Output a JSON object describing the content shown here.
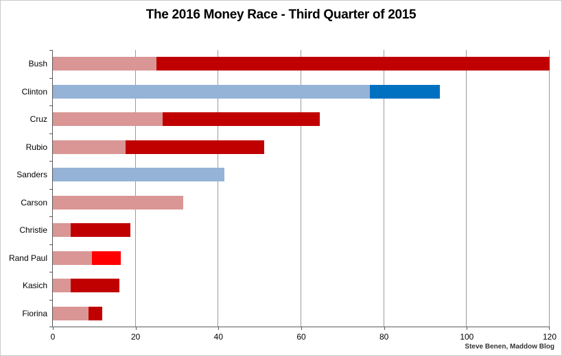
{
  "title": "The 2016 Money Race - Third Quarter of 2015",
  "attribution": "Steve Benen, Maddow Blog",
  "colors": {
    "republican_light": "#D99694",
    "republican_dark": "#C00000",
    "republican_bright": "#FF0000",
    "democrat_light": "#95B3D7",
    "democrat_dark": "#0070C0",
    "gridline": "#9A9A9A",
    "axis": "#595959",
    "background": "#FFFFFF"
  },
  "chart_data": {
    "type": "bar",
    "orientation": "horizontal",
    "stacked": true,
    "grid": true,
    "legend": "none",
    "title": "The 2016 Money Race - Third Quarter of 2015",
    "xlabel": "",
    "ylabel": "",
    "xlim": [
      0,
      120
    ],
    "x_ticks": [
      0,
      20,
      40,
      60,
      80,
      100,
      120
    ],
    "categories": [
      "Bush",
      "Clinton",
      "Cruz",
      "Rubio",
      "Sanders",
      "Carson",
      "Christie",
      "Rand Paul",
      "Kasich",
      "Fiorina"
    ],
    "rows": [
      {
        "label": "Bush",
        "segments": [
          {
            "value": 25.0,
            "color": "#D99694"
          },
          {
            "value": 95.0,
            "color": "#C00000"
          }
        ],
        "total": 120.0
      },
      {
        "label": "Clinton",
        "segments": [
          {
            "value": 76.5,
            "color": "#95B3D7"
          },
          {
            "value": 17.0,
            "color": "#0070C0"
          }
        ],
        "total": 93.5
      },
      {
        "label": "Cruz",
        "segments": [
          {
            "value": 26.5,
            "color": "#D99694"
          },
          {
            "value": 38.0,
            "color": "#C00000"
          }
        ],
        "total": 64.5
      },
      {
        "label": "Rubio",
        "segments": [
          {
            "value": 17.5,
            "color": "#D99694"
          },
          {
            "value": 33.5,
            "color": "#C00000"
          }
        ],
        "total": 51.0
      },
      {
        "label": "Sanders",
        "segments": [
          {
            "value": 41.5,
            "color": "#95B3D7"
          }
        ],
        "total": 41.5
      },
      {
        "label": "Carson",
        "segments": [
          {
            "value": 31.5,
            "color": "#D99694"
          }
        ],
        "total": 31.5
      },
      {
        "label": "Christie",
        "segments": [
          {
            "value": 4.3,
            "color": "#D99694"
          },
          {
            "value": 14.4,
            "color": "#C00000"
          }
        ],
        "total": 18.7
      },
      {
        "label": "Rand Paul",
        "segments": [
          {
            "value": 9.4,
            "color": "#D99694"
          },
          {
            "value": 7.0,
            "color": "#FF0000"
          }
        ],
        "total": 16.4
      },
      {
        "label": "Kasich",
        "segments": [
          {
            "value": 4.3,
            "color": "#D99694"
          },
          {
            "value": 11.7,
            "color": "#C00000"
          }
        ],
        "total": 16.0
      },
      {
        "label": "Fiorina",
        "segments": [
          {
            "value": 8.6,
            "color": "#D99694"
          },
          {
            "value": 3.4,
            "color": "#C00000"
          }
        ],
        "total": 12.0
      }
    ]
  }
}
